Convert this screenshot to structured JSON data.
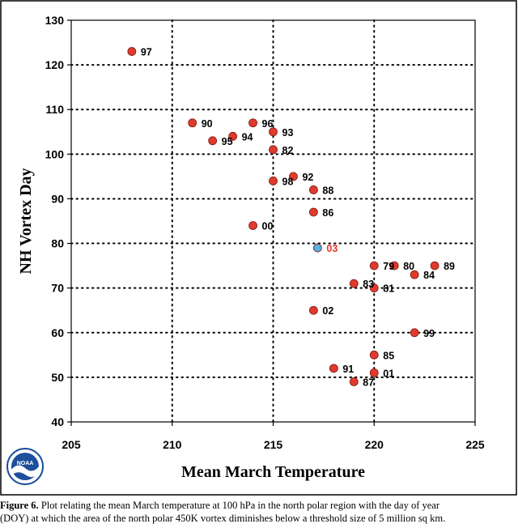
{
  "chart_data": {
    "type": "scatter",
    "xlabel": "Mean March Temperature",
    "ylabel": "NH Vortex Day",
    "xlim": [
      205,
      225
    ],
    "ylim": [
      40,
      130
    ],
    "x_ticks": [
      205,
      210,
      215,
      220,
      225
    ],
    "y_ticks": [
      40,
      50,
      60,
      70,
      80,
      90,
      100,
      110,
      120,
      130
    ],
    "grid": "dotted",
    "points": [
      {
        "label": "97",
        "x": 208,
        "y": 123
      },
      {
        "label": "90",
        "x": 211,
        "y": 107
      },
      {
        "label": "96",
        "x": 214,
        "y": 107
      },
      {
        "label": "93",
        "x": 215,
        "y": 105
      },
      {
        "label": "94",
        "x": 213,
        "y": 104
      },
      {
        "label": "95",
        "x": 212,
        "y": 103
      },
      {
        "label": "82",
        "x": 215,
        "y": 101
      },
      {
        "label": "92",
        "x": 216,
        "y": 95
      },
      {
        "label": "98",
        "x": 215,
        "y": 94
      },
      {
        "label": "88",
        "x": 217,
        "y": 92
      },
      {
        "label": "86",
        "x": 217,
        "y": 87
      },
      {
        "label": "00",
        "x": 214,
        "y": 84
      },
      {
        "label": "03",
        "x": 217.2,
        "y": 79,
        "highlight": true
      },
      {
        "label": "79",
        "x": 220,
        "y": 75
      },
      {
        "label": "80",
        "x": 221,
        "y": 75
      },
      {
        "label": "89",
        "x": 223,
        "y": 75
      },
      {
        "label": "84",
        "x": 222,
        "y": 73
      },
      {
        "label": "83",
        "x": 219,
        "y": 71
      },
      {
        "label": "81",
        "x": 220,
        "y": 70
      },
      {
        "label": "02",
        "x": 217,
        "y": 65
      },
      {
        "label": "99",
        "x": 222,
        "y": 60
      },
      {
        "label": "85",
        "x": 220,
        "y": 55
      },
      {
        "label": "91",
        "x": 218,
        "y": 52
      },
      {
        "label": "01",
        "x": 220,
        "y": 51
      },
      {
        "label": "87",
        "x": 219,
        "y": 49
      }
    ],
    "colors": {
      "point": "#e03a2e",
      "highlight_point": "#5aaee0",
      "highlight_label": "#e03a2e",
      "label": "#000000"
    }
  },
  "caption": {
    "prefix": "Figure 6.",
    "line1": " Plot relating the mean March temperature at 100 hPa  in the  north polar region with the day of year",
    "line2": "(DOY) at which the area of the north polar 450K vortex diminishes below a threshold size of 5 million sq km."
  },
  "logo": {
    "text": "NOAA",
    "icon": "noaa-logo-icon"
  }
}
